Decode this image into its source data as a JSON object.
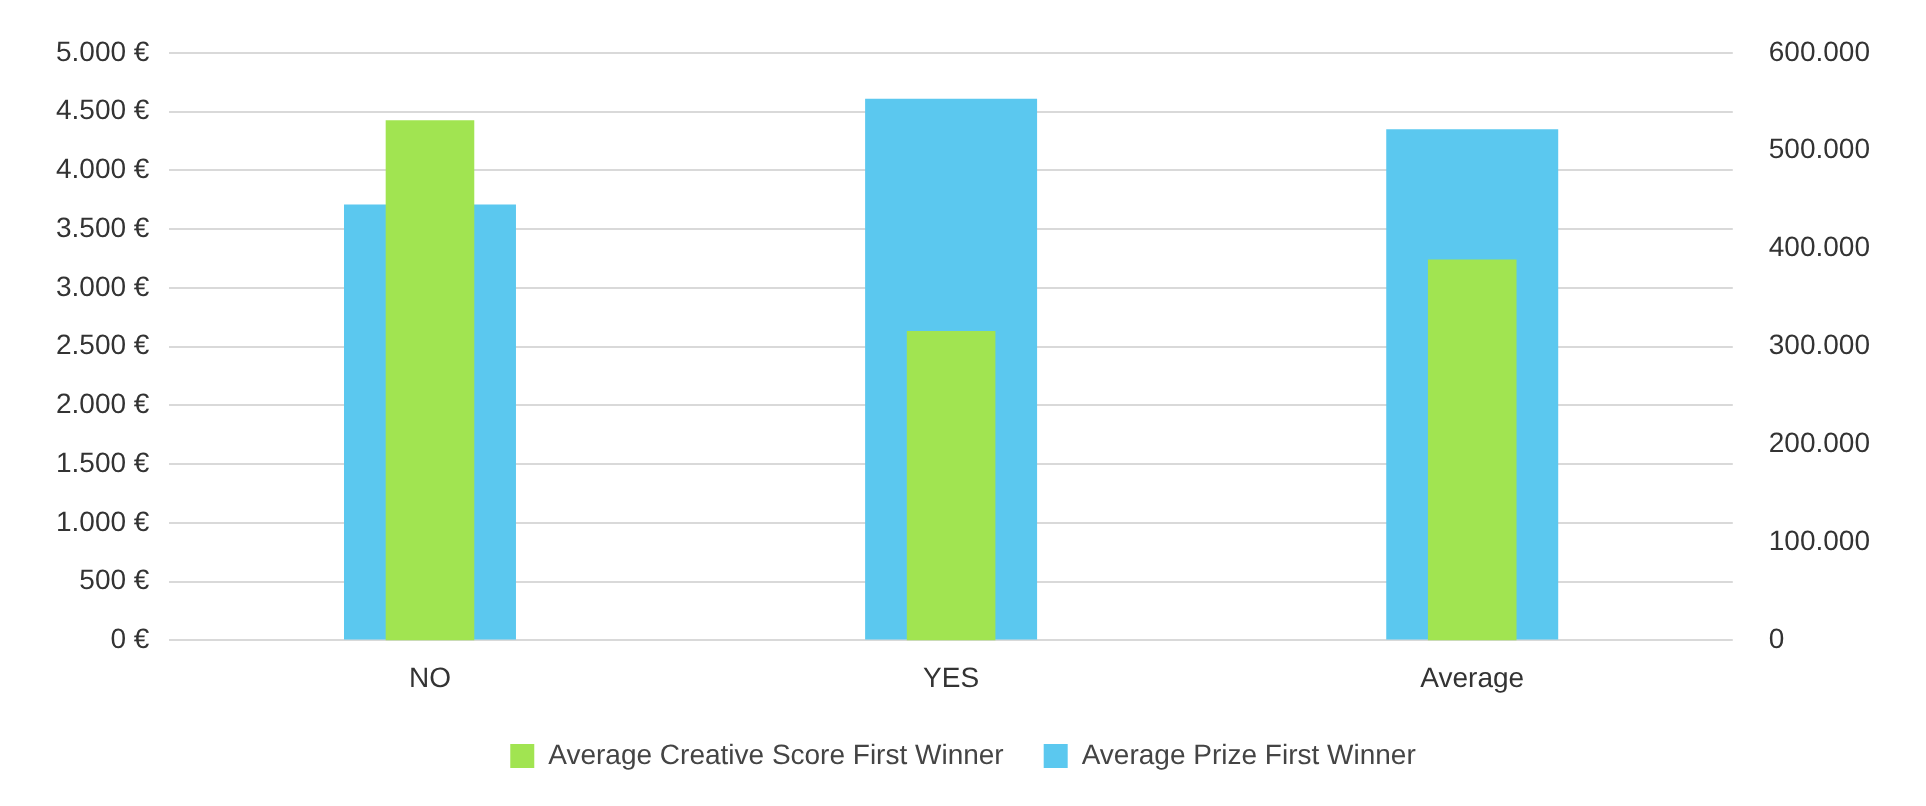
{
  "chart_data": {
    "type": "bar",
    "categories": [
      "NO",
      "YES",
      "Average"
    ],
    "series": [
      {
        "name": "Average Prize First Winner",
        "color": "#5bc8ef",
        "values": [
          3710,
          4610,
          4350
        ]
      },
      {
        "name": "Average Creative Score First Winner",
        "color": "#a1e451",
        "values": [
          531000,
          316000,
          389000
        ],
        "axis": "y2"
      }
    ],
    "ylim": [
      0,
      5000
    ],
    "yticks": [
      {
        "value": 0,
        "label": "0 €"
      },
      {
        "value": 500,
        "label": "500 €"
      },
      {
        "value": 1000,
        "label": "1.000 €"
      },
      {
        "value": 1500,
        "label": "1.500 €"
      },
      {
        "value": 2000,
        "label": "2.000 €"
      },
      {
        "value": 2500,
        "label": "2.500 €"
      },
      {
        "value": 3000,
        "label": "3.000 €"
      },
      {
        "value": 3500,
        "label": "3.500 €"
      },
      {
        "value": 4000,
        "label": "4.000 €"
      },
      {
        "value": 4500,
        "label": "4.500 €"
      },
      {
        "value": 5000,
        "label": "5.000 €"
      }
    ],
    "y2lim": [
      0,
      600000
    ],
    "y2ticks": [
      0,
      {
        "value": 100000,
        "label": "100.000"
      },
      {
        "value": 200000,
        "label": "200.000"
      },
      {
        "value": 300000,
        "label": "300.000"
      },
      {
        "value": 400000,
        "label": "400.000"
      },
      {
        "value": 500000,
        "label": "500.000"
      },
      {
        "value": 600000,
        "label": "600.000"
      }
    ],
    "grid": "y",
    "legend": "bottom"
  }
}
